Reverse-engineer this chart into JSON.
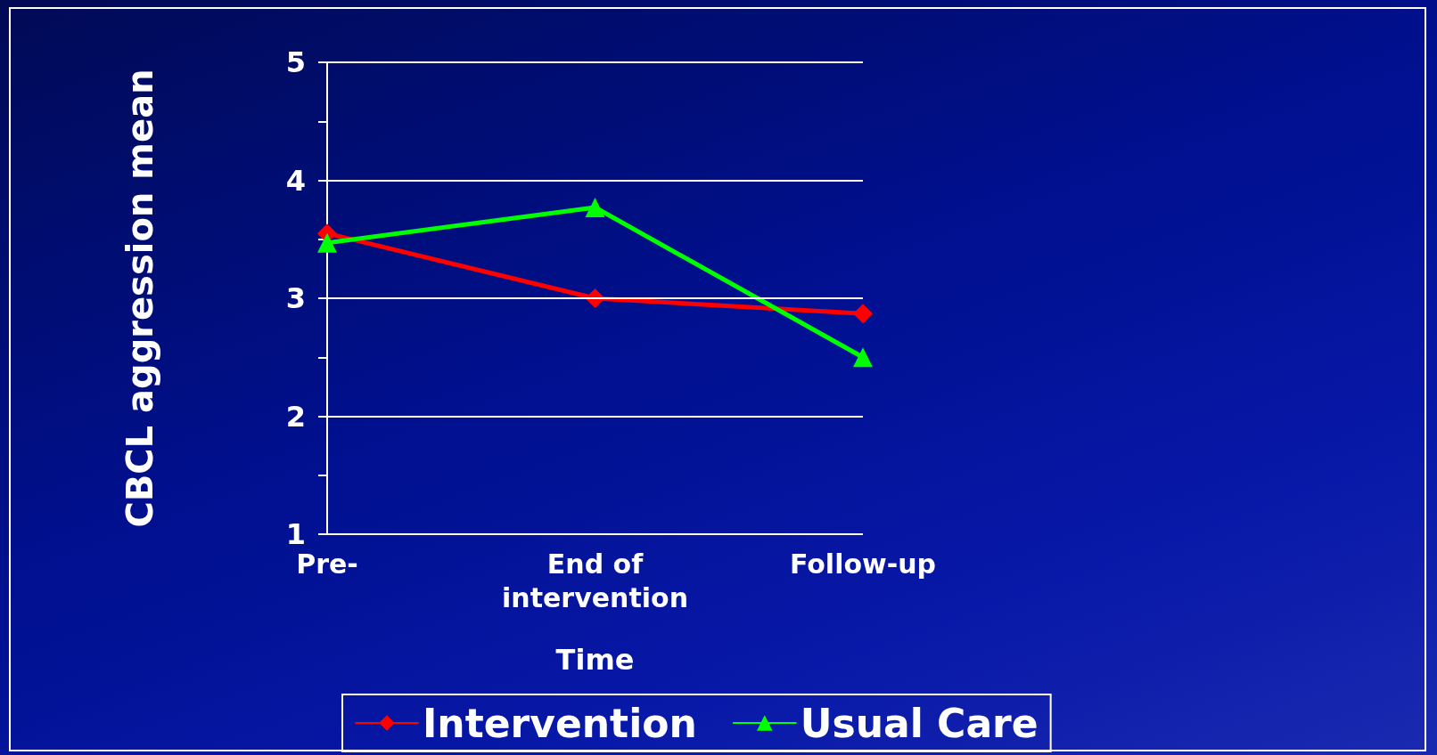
{
  "chart_data": {
    "type": "line",
    "xlabel": "Time",
    "ylabel": "CBCL aggression mean",
    "categories": [
      "Pre-",
      "End of\nintervention",
      "Follow-up"
    ],
    "series": [
      {
        "name": "Intervention",
        "color": "#ff0000",
        "marker": "diamond",
        "values": [
          3.55,
          3.0,
          2.87
        ]
      },
      {
        "name": "Usual Care",
        "color": "#00ff00",
        "marker": "triangle",
        "values": [
          3.47,
          3.77,
          2.5
        ]
      }
    ],
    "ylim": [
      1,
      5
    ],
    "yticks": [
      1,
      {
        "value": 1.5,
        "label": null
      },
      2,
      {
        "value": 2.5,
        "label": null
      },
      3,
      {
        "value": 3.5,
        "label": null
      },
      4,
      {
        "value": 4.5,
        "label": null
      },
      5
    ],
    "grid": "y",
    "legend": "bottom",
    "line_style": "solid"
  }
}
